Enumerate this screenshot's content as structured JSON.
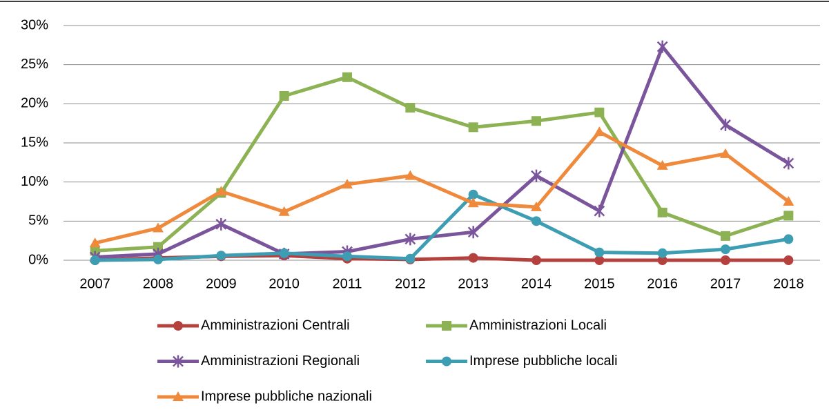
{
  "chart_data": {
    "type": "line",
    "categories": [
      "2007",
      "2008",
      "2009",
      "2010",
      "2011",
      "2012",
      "2013",
      "2014",
      "2015",
      "2016",
      "2017",
      "2018"
    ],
    "series": [
      {
        "name": "Amministrazioni Centrali",
        "color": "#b5413f",
        "marker": "circle",
        "values": [
          0,
          0.3,
          0.5,
          0.6,
          0.2,
          0.1,
          0.3,
          0,
          0,
          0,
          0,
          0
        ]
      },
      {
        "name": "Amministrazioni Locali",
        "color": "#8db254",
        "marker": "square",
        "values": [
          1.2,
          1.7,
          8.6,
          21.0,
          23.4,
          19.5,
          17.0,
          17.8,
          18.9,
          6.1,
          3.1,
          5.7
        ]
      },
      {
        "name": "Amministrazioni Regionali",
        "color": "#7b559c",
        "marker": "star",
        "values": [
          0.4,
          0.8,
          4.6,
          0.8,
          1.1,
          2.7,
          3.6,
          10.8,
          6.3,
          27.3,
          17.3,
          12.4
        ]
      },
      {
        "name": "Imprese pubbliche locali",
        "color": "#3d9db3",
        "marker": "circle",
        "values": [
          0,
          0.1,
          0.6,
          0.9,
          0.5,
          0.2,
          8.4,
          5.0,
          1.0,
          0.9,
          1.4,
          2.7
        ]
      },
      {
        "name": "Imprese pubbliche nazionali",
        "color": "#ef8a3d",
        "marker": "triangle",
        "values": [
          2.2,
          4.1,
          8.8,
          6.2,
          9.7,
          10.8,
          7.3,
          6.8,
          16.4,
          12.1,
          13.6,
          7.5
        ]
      }
    ],
    "ylim": [
      0,
      30
    ],
    "yticks": [
      {
        "value": 0,
        "label": "0%"
      },
      {
        "value": 5,
        "label": "5%"
      },
      {
        "value": 10,
        "label": "10%"
      },
      {
        "value": 15,
        "label": "15%"
      },
      {
        "value": 20,
        "label": "20%"
      },
      {
        "value": 25,
        "label": "25%"
      },
      {
        "value": 30,
        "label": "30%"
      }
    ],
    "grid": true
  }
}
